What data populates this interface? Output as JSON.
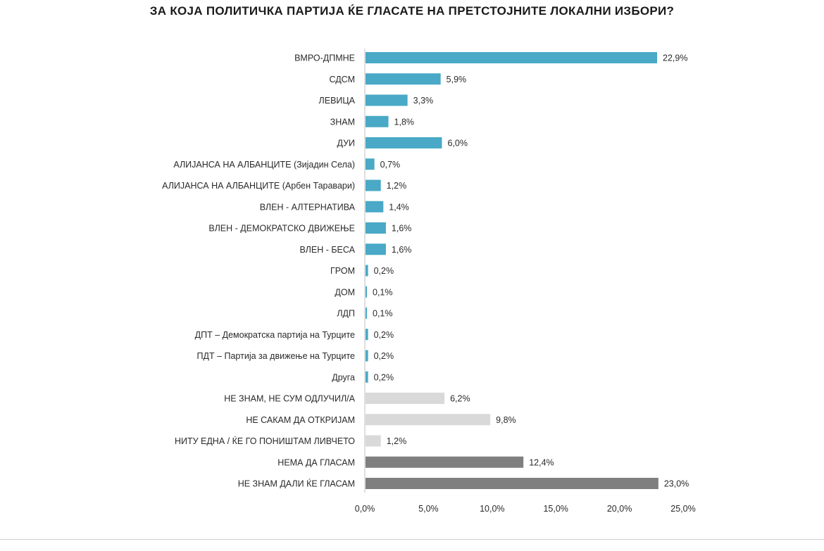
{
  "chart_data": {
    "type": "bar",
    "orientation": "horizontal",
    "title": "ЗА КОЈА ПОЛИТИЧКА ПАРТИЈА ЌЕ ГЛАСАТЕ НА ПРЕТСТОЈНИТЕ ЛОКАЛНИ ИЗБОРИ?",
    "xlabel": "",
    "ylabel": "",
    "xlim": [
      0,
      25
    ],
    "grid": false,
    "legend": "none",
    "x_ticks": [
      "0,0%",
      "5,0%",
      "10,0%",
      "15,0%",
      "20,0%",
      "25,0%"
    ],
    "colors": {
      "party": "#49a9c6",
      "undecided": "#d9d9d9",
      "abstain": "#7f7f7f"
    },
    "bars": [
      {
        "label": "ВМРО-ДПМНЕ",
        "value": 22.9,
        "display": "22,9%",
        "group": "party"
      },
      {
        "label": "СДСМ",
        "value": 5.9,
        "display": "5,9%",
        "group": "party"
      },
      {
        "label": "ЛЕВИЦА",
        "value": 3.3,
        "display": "3,3%",
        "group": "party"
      },
      {
        "label": "ЗНАМ",
        "value": 1.8,
        "display": "1,8%",
        "group": "party"
      },
      {
        "label": "ДУИ",
        "value": 6.0,
        "display": "6,0%",
        "group": "party"
      },
      {
        "label": "АЛИЈАНСА НА АЛБАНЦИТЕ (Зијадин Села)",
        "value": 0.7,
        "display": "0,7%",
        "group": "party"
      },
      {
        "label": "АЛИЈАНСА НА АЛБАНЦИТЕ (Арбен Таравари)",
        "value": 1.2,
        "display": "1,2%",
        "group": "party"
      },
      {
        "label": "ВЛЕН - АЛТЕРНАТИВА",
        "value": 1.4,
        "display": "1,4%",
        "group": "party"
      },
      {
        "label": "ВЛЕН - ДЕМОКРАТСКО ДВИЖЕЊЕ",
        "value": 1.6,
        "display": "1,6%",
        "group": "party"
      },
      {
        "label": "ВЛЕН - БЕСА",
        "value": 1.6,
        "display": "1,6%",
        "group": "party"
      },
      {
        "label": "ГРОМ",
        "value": 0.2,
        "display": "0,2%",
        "group": "party"
      },
      {
        "label": "ДОМ",
        "value": 0.1,
        "display": "0,1%",
        "group": "party"
      },
      {
        "label": "ЛДП",
        "value": 0.1,
        "display": "0,1%",
        "group": "party"
      },
      {
        "label": "ДПТ – Демократска партија на Турците",
        "value": 0.2,
        "display": "0,2%",
        "group": "party"
      },
      {
        "label": "ПДТ – Партија за движење на Турците",
        "value": 0.2,
        "display": "0,2%",
        "group": "party"
      },
      {
        "label": "Друга",
        "value": 0.2,
        "display": "0,2%",
        "group": "party"
      },
      {
        "label": "НЕ ЗНАМ, НЕ СУМ ОДЛУЧИЛ/А",
        "value": 6.2,
        "display": "6,2%",
        "group": "undecided"
      },
      {
        "label": "НЕ САКАМ ДА ОТКРИЈАМ",
        "value": 9.8,
        "display": "9,8%",
        "group": "undecided"
      },
      {
        "label": "НИТУ ЕДНА / ЌЕ ГО ПОНИШТАМ ЛИВЧЕТО",
        "value": 1.2,
        "display": "1,2%",
        "group": "undecided"
      },
      {
        "label": "НЕМА ДА ГЛАСАМ",
        "value": 12.4,
        "display": "12,4%",
        "group": "abstain"
      },
      {
        "label": "НЕ ЗНАМ ДАЛИ ЌЕ ГЛАСАМ",
        "value": 23.0,
        "display": "23,0%",
        "group": "abstain"
      }
    ]
  }
}
